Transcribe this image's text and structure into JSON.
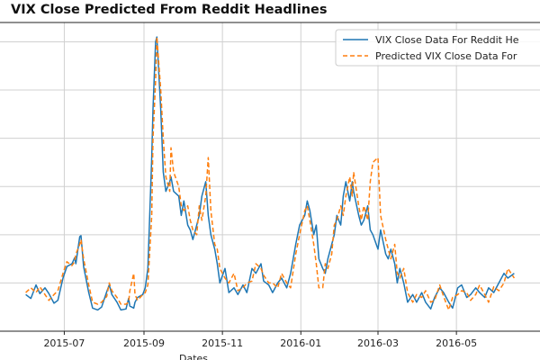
{
  "chart_data": {
    "type": "line",
    "title": "VIX Close Predicted From Reddit Headlines",
    "xlabel": "Dates",
    "ylabel": "",
    "x_tick_labels": [
      "2015-07",
      "2015-09",
      "2015-11",
      "2016-01",
      "2016-03",
      "2016-05"
    ],
    "x_tick_dates": [
      "2015-07-01",
      "2015-09-01",
      "2015-11-01",
      "2016-01-01",
      "2016-03-01",
      "2016-05-01"
    ],
    "x_range": [
      "2015-06-01",
      "2016-06-15"
    ],
    "ylim": [
      10,
      42
    ],
    "grid": true,
    "legend_position": "top-right",
    "series": [
      {
        "name": "VIX Close Data For Reddit He",
        "color": "#1f77b4",
        "style": "solid",
        "points": [
          [
            "2015-06-01",
            13.8
          ],
          [
            "2015-06-05",
            13.4
          ],
          [
            "2015-06-09",
            14.8
          ],
          [
            "2015-06-12",
            13.9
          ],
          [
            "2015-06-16",
            14.5
          ],
          [
            "2015-06-19",
            13.9
          ],
          [
            "2015-06-23",
            12.9
          ],
          [
            "2015-06-26",
            13.2
          ],
          [
            "2015-06-30",
            15.5
          ],
          [
            "2015-07-03",
            16.7
          ],
          [
            "2015-07-07",
            17.0
          ],
          [
            "2015-07-09",
            17.6
          ],
          [
            "2015-07-10",
            17.0
          ],
          [
            "2015-07-13",
            19.8
          ],
          [
            "2015-07-14",
            19.9
          ],
          [
            "2015-07-16",
            16.7
          ],
          [
            "2015-07-20",
            14.0
          ],
          [
            "2015-07-23",
            12.4
          ],
          [
            "2015-07-27",
            12.2
          ],
          [
            "2015-07-30",
            12.5
          ],
          [
            "2015-08-03",
            14.1
          ],
          [
            "2015-08-05",
            14.8
          ],
          [
            "2015-08-07",
            13.8
          ],
          [
            "2015-08-11",
            13.0
          ],
          [
            "2015-08-14",
            12.2
          ],
          [
            "2015-08-18",
            12.3
          ],
          [
            "2015-08-20",
            13.4
          ],
          [
            "2015-08-21",
            12.6
          ],
          [
            "2015-08-24",
            12.4
          ],
          [
            "2015-08-25",
            13.0
          ],
          [
            "2015-08-27",
            13.5
          ],
          [
            "2015-08-31",
            13.8
          ],
          [
            "2015-09-02",
            14.5
          ],
          [
            "2015-09-04",
            16.5
          ],
          [
            "2015-09-07",
            28.0
          ],
          [
            "2015-09-08",
            33.0
          ],
          [
            "2015-09-10",
            40.0
          ],
          [
            "2015-09-11",
            40.5
          ],
          [
            "2015-09-14",
            33.0
          ],
          [
            "2015-09-16",
            26.5
          ],
          [
            "2015-09-18",
            24.5
          ],
          [
            "2015-09-21",
            25.5
          ],
          [
            "2015-09-22",
            26.0
          ],
          [
            "2015-09-24",
            24.5
          ],
          [
            "2015-09-28",
            24.0
          ],
          [
            "2015-09-30",
            22.0
          ],
          [
            "2015-10-02",
            23.5
          ],
          [
            "2015-10-05",
            21.0
          ],
          [
            "2015-10-07",
            20.5
          ],
          [
            "2015-10-09",
            19.5
          ],
          [
            "2015-10-12",
            21.0
          ],
          [
            "2015-10-14",
            22.0
          ],
          [
            "2015-10-16",
            24.0
          ],
          [
            "2015-10-19",
            25.5
          ],
          [
            "2015-10-21",
            22.0
          ],
          [
            "2015-10-23",
            20.0
          ],
          [
            "2015-10-26",
            18.5
          ],
          [
            "2015-10-28",
            17.0
          ],
          [
            "2015-10-30",
            15.0
          ],
          [
            "2015-11-03",
            16.5
          ],
          [
            "2015-11-06",
            14.0
          ],
          [
            "2015-11-10",
            14.5
          ],
          [
            "2015-11-13",
            13.8
          ],
          [
            "2015-11-17",
            14.8
          ],
          [
            "2015-11-20",
            14.0
          ],
          [
            "2015-11-24",
            16.5
          ],
          [
            "2015-11-27",
            16.0
          ],
          [
            "2015-12-01",
            17.0
          ],
          [
            "2015-12-03",
            15.2
          ],
          [
            "2015-12-07",
            14.8
          ],
          [
            "2015-12-10",
            14.0
          ],
          [
            "2015-12-14",
            15.0
          ],
          [
            "2015-12-17",
            15.5
          ],
          [
            "2015-12-21",
            14.5
          ],
          [
            "2015-12-24",
            16.0
          ],
          [
            "2015-12-28",
            19.0
          ],
          [
            "2015-12-31",
            21.0
          ],
          [
            "2016-01-04",
            22.0
          ],
          [
            "2016-01-06",
            23.5
          ],
          [
            "2016-01-08",
            22.5
          ],
          [
            "2016-01-11",
            20.0
          ],
          [
            "2016-01-13",
            21.0
          ],
          [
            "2016-01-15",
            17.5
          ],
          [
            "2016-01-18",
            16.5
          ],
          [
            "2016-01-20",
            16.0
          ],
          [
            "2016-01-22",
            17.5
          ],
          [
            "2016-01-25",
            19.0
          ],
          [
            "2016-01-27",
            20.0
          ],
          [
            "2016-01-29",
            22.0
          ],
          [
            "2016-02-01",
            21.0
          ],
          [
            "2016-02-03",
            24.0
          ],
          [
            "2016-02-05",
            25.5
          ],
          [
            "2016-02-08",
            23.5
          ],
          [
            "2016-02-10",
            25.5
          ],
          [
            "2016-02-11",
            24.5
          ],
          [
            "2016-02-15",
            22.0
          ],
          [
            "2016-02-17",
            21.0
          ],
          [
            "2016-02-19",
            21.5
          ],
          [
            "2016-02-22",
            23.0
          ],
          [
            "2016-02-24",
            20.5
          ],
          [
            "2016-02-26",
            20.0
          ],
          [
            "2016-03-01",
            18.5
          ],
          [
            "2016-03-03",
            20.5
          ],
          [
            "2016-03-07",
            18.0
          ],
          [
            "2016-03-09",
            17.5
          ],
          [
            "2016-03-11",
            18.5
          ],
          [
            "2016-03-14",
            17.0
          ],
          [
            "2016-03-16",
            15.0
          ],
          [
            "2016-03-18",
            16.5
          ],
          [
            "2016-03-21",
            15.0
          ],
          [
            "2016-03-24",
            13.0
          ],
          [
            "2016-03-28",
            13.8
          ],
          [
            "2016-03-31",
            13.0
          ],
          [
            "2016-04-04",
            14.0
          ],
          [
            "2016-04-07",
            13.0
          ],
          [
            "2016-04-11",
            12.3
          ],
          [
            "2016-04-14",
            13.5
          ],
          [
            "2016-04-18",
            14.5
          ],
          [
            "2016-04-21",
            14.0
          ],
          [
            "2016-04-25",
            13.0
          ],
          [
            "2016-04-28",
            12.4
          ],
          [
            "2016-05-02",
            14.5
          ],
          [
            "2016-05-05",
            14.8
          ],
          [
            "2016-05-09",
            13.5
          ],
          [
            "2016-05-12",
            13.8
          ],
          [
            "2016-05-16",
            14.5
          ],
          [
            "2016-05-19",
            14.0
          ],
          [
            "2016-05-23",
            13.5
          ],
          [
            "2016-05-26",
            14.5
          ],
          [
            "2016-05-30",
            14.0
          ],
          [
            "2016-06-03",
            15.0
          ],
          [
            "2016-06-07",
            16.0
          ],
          [
            "2016-06-10",
            15.5
          ],
          [
            "2016-06-15",
            16.0
          ]
        ]
      },
      {
        "name": "Predicted VIX Close Data For",
        "color": "#ff7f0e",
        "style": "dashed",
        "points": [
          [
            "2015-06-01",
            14.0
          ],
          [
            "2015-06-05",
            14.5
          ],
          [
            "2015-06-09",
            14.0
          ],
          [
            "2015-06-12",
            14.6
          ],
          [
            "2015-06-16",
            13.8
          ],
          [
            "2015-06-19",
            13.2
          ],
          [
            "2015-06-23",
            13.8
          ],
          [
            "2015-06-26",
            14.2
          ],
          [
            "2015-06-30",
            16.0
          ],
          [
            "2015-07-03",
            17.2
          ],
          [
            "2015-07-07",
            16.8
          ],
          [
            "2015-07-09",
            17.2
          ],
          [
            "2015-07-10",
            18.0
          ],
          [
            "2015-07-13",
            19.0
          ],
          [
            "2015-07-14",
            19.5
          ],
          [
            "2015-07-16",
            17.5
          ],
          [
            "2015-07-20",
            14.8
          ],
          [
            "2015-07-23",
            13.0
          ],
          [
            "2015-07-27",
            12.8
          ],
          [
            "2015-07-30",
            13.0
          ],
          [
            "2015-08-03",
            13.6
          ],
          [
            "2015-08-05",
            15.0
          ],
          [
            "2015-08-07",
            14.2
          ],
          [
            "2015-08-11",
            13.5
          ],
          [
            "2015-08-14",
            12.8
          ],
          [
            "2015-08-18",
            12.8
          ],
          [
            "2015-08-20",
            13.0
          ],
          [
            "2015-08-21",
            14.2
          ],
          [
            "2015-08-24",
            16.0
          ],
          [
            "2015-08-25",
            13.8
          ],
          [
            "2015-08-27",
            13.2
          ],
          [
            "2015-08-31",
            13.8
          ],
          [
            "2015-09-02",
            14.0
          ],
          [
            "2015-09-04",
            14.8
          ],
          [
            "2015-09-07",
            22.0
          ],
          [
            "2015-09-08",
            30.0
          ],
          [
            "2015-09-10",
            36.0
          ],
          [
            "2015-09-11",
            40.5
          ],
          [
            "2015-09-14",
            35.0
          ],
          [
            "2015-09-16",
            30.0
          ],
          [
            "2015-09-18",
            26.0
          ],
          [
            "2015-09-21",
            24.5
          ],
          [
            "2015-09-22",
            29.0
          ],
          [
            "2015-09-24",
            26.5
          ],
          [
            "2015-09-28",
            25.0
          ],
          [
            "2015-09-30",
            23.0
          ],
          [
            "2015-10-02",
            22.5
          ],
          [
            "2015-10-05",
            23.0
          ],
          [
            "2015-10-07",
            21.5
          ],
          [
            "2015-10-09",
            20.5
          ],
          [
            "2015-10-12",
            20.0
          ],
          [
            "2015-10-14",
            23.0
          ],
          [
            "2015-10-16",
            21.5
          ],
          [
            "2015-10-19",
            24.0
          ],
          [
            "2015-10-21",
            28.0
          ],
          [
            "2015-10-23",
            22.5
          ],
          [
            "2015-10-26",
            19.0
          ],
          [
            "2015-10-28",
            18.5
          ],
          [
            "2015-10-30",
            16.5
          ],
          [
            "2015-11-03",
            15.5
          ],
          [
            "2015-11-06",
            15.0
          ],
          [
            "2015-11-10",
            16.0
          ],
          [
            "2015-11-13",
            14.2
          ],
          [
            "2015-11-17",
            14.5
          ],
          [
            "2015-11-20",
            15.0
          ],
          [
            "2015-11-24",
            15.2
          ],
          [
            "2015-11-27",
            17.0
          ],
          [
            "2015-12-01",
            16.5
          ],
          [
            "2015-12-03",
            15.8
          ],
          [
            "2015-12-07",
            15.0
          ],
          [
            "2015-12-10",
            15.0
          ],
          [
            "2015-12-14",
            14.5
          ],
          [
            "2015-12-17",
            16.0
          ],
          [
            "2015-12-21",
            15.0
          ],
          [
            "2015-12-24",
            14.5
          ],
          [
            "2015-12-28",
            18.0
          ],
          [
            "2015-12-31",
            20.0
          ],
          [
            "2016-01-04",
            22.5
          ],
          [
            "2016-01-06",
            23.0
          ],
          [
            "2016-01-08",
            21.5
          ],
          [
            "2016-01-11",
            19.0
          ],
          [
            "2016-01-13",
            17.0
          ],
          [
            "2016-01-15",
            14.5
          ],
          [
            "2016-01-18",
            14.5
          ],
          [
            "2016-01-20",
            17.0
          ],
          [
            "2016-01-22",
            16.5
          ],
          [
            "2016-01-25",
            18.0
          ],
          [
            "2016-01-27",
            21.0
          ],
          [
            "2016-01-29",
            21.5
          ],
          [
            "2016-02-01",
            23.0
          ],
          [
            "2016-02-03",
            22.0
          ],
          [
            "2016-02-05",
            24.0
          ],
          [
            "2016-02-08",
            26.0
          ],
          [
            "2016-02-10",
            24.0
          ],
          [
            "2016-02-11",
            26.5
          ],
          [
            "2016-02-15",
            23.0
          ],
          [
            "2016-02-17",
            21.5
          ],
          [
            "2016-02-19",
            23.0
          ],
          [
            "2016-02-22",
            21.5
          ],
          [
            "2016-02-24",
            25.5
          ],
          [
            "2016-02-26",
            27.5
          ],
          [
            "2016-03-01",
            28.0
          ],
          [
            "2016-03-03",
            22.0
          ],
          [
            "2016-03-07",
            19.5
          ],
          [
            "2016-03-09",
            18.5
          ],
          [
            "2016-03-11",
            17.5
          ],
          [
            "2016-03-14",
            19.0
          ],
          [
            "2016-03-16",
            16.0
          ],
          [
            "2016-03-18",
            15.5
          ],
          [
            "2016-03-21",
            16.5
          ],
          [
            "2016-03-24",
            14.0
          ],
          [
            "2016-03-28",
            13.0
          ],
          [
            "2016-03-31",
            13.8
          ],
          [
            "2016-04-04",
            13.5
          ],
          [
            "2016-04-07",
            14.2
          ],
          [
            "2016-04-11",
            13.0
          ],
          [
            "2016-04-14",
            13.2
          ],
          [
            "2016-04-18",
            14.8
          ],
          [
            "2016-04-21",
            13.6
          ],
          [
            "2016-04-25",
            12.2
          ],
          [
            "2016-04-28",
            13.5
          ],
          [
            "2016-05-02",
            13.8
          ],
          [
            "2016-05-05",
            14.2
          ],
          [
            "2016-05-09",
            14.0
          ],
          [
            "2016-05-12",
            13.2
          ],
          [
            "2016-05-16",
            13.8
          ],
          [
            "2016-05-19",
            14.8
          ],
          [
            "2016-05-23",
            13.8
          ],
          [
            "2016-05-26",
            13.0
          ],
          [
            "2016-05-30",
            14.6
          ],
          [
            "2016-06-03",
            14.2
          ],
          [
            "2016-06-07",
            15.0
          ],
          [
            "2016-06-10",
            16.5
          ],
          [
            "2016-06-15",
            15.5
          ]
        ]
      }
    ]
  }
}
